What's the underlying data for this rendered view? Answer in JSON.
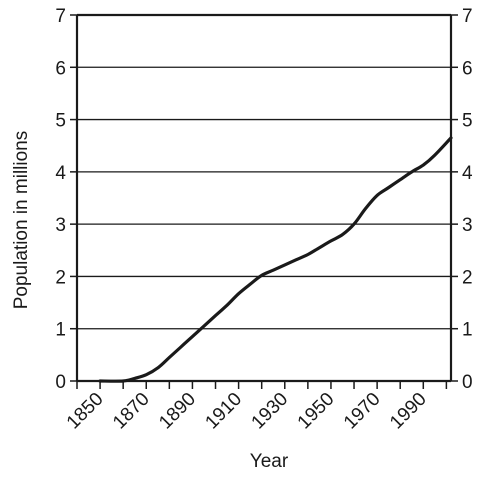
{
  "chart_data": {
    "type": "line",
    "title": "",
    "xlabel": "Year",
    "ylabel": "Population in millions",
    "xlim": [
      1840,
      2002
    ],
    "ylim": [
      0,
      7
    ],
    "x_ticks": [
      "1850",
      "1870",
      "1890",
      "1910",
      "1930",
      "1950",
      "1970",
      "1990"
    ],
    "y_ticks": [
      "0",
      "1",
      "2",
      "3",
      "4",
      "5",
      "6",
      "7"
    ],
    "grid": "horizontal",
    "legend": "none",
    "line_color": "#1a1a1a",
    "series": [
      {
        "x": [
          1850,
          1860,
          1865,
          1870,
          1875,
          1880,
          1885,
          1890,
          1895,
          1900,
          1905,
          1910,
          1915,
          1920,
          1925,
          1930,
          1935,
          1940,
          1945,
          1950,
          1955,
          1960,
          1965,
          1970,
          1975,
          1980,
          1985,
          1990,
          1995,
          2002
        ],
        "y": [
          0.0,
          0.0,
          0.05,
          0.12,
          0.25,
          0.45,
          0.65,
          0.85,
          1.05,
          1.25,
          1.45,
          1.67,
          1.85,
          2.02,
          2.12,
          2.22,
          2.32,
          2.42,
          2.55,
          2.68,
          2.8,
          3.0,
          3.3,
          3.55,
          3.7,
          3.85,
          4.0,
          4.13,
          4.32,
          4.65
        ]
      }
    ]
  }
}
